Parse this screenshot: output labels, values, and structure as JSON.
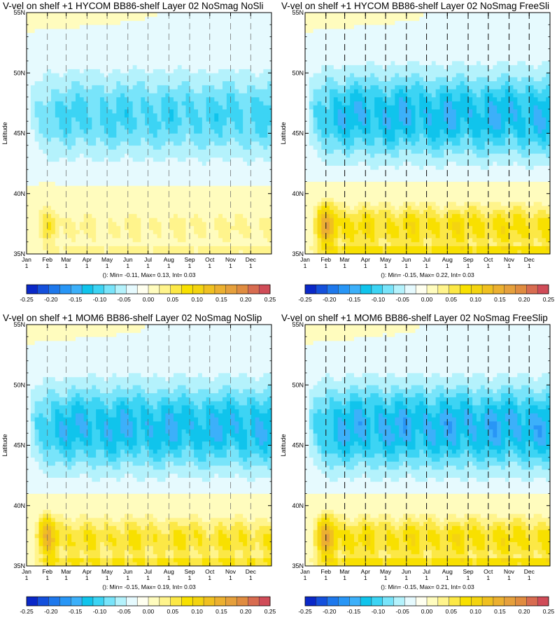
{
  "colors": [
    "#0a28c8",
    "#1450dc",
    "#1e78ec",
    "#2896f6",
    "#3cb0fa",
    "#10c4ec",
    "#3cd4f4",
    "#78e4fa",
    "#b4f2fc",
    "#e6fafe",
    "#fffff0",
    "#fffcbe",
    "#fff48c",
    "#fce846",
    "#f8e000",
    "#f4d410",
    "#f0c020",
    "#ecb030",
    "#e6a03c",
    "#e08c40",
    "#d86c50",
    "#d04c58"
  ],
  "colorbar_ticks": [
    "-0.25",
    "-0.20",
    "-0.15",
    "-0.10",
    "-0.05",
    "0.00",
    "0.05",
    "0.10",
    "0.15",
    "0.20",
    "0.25"
  ],
  "chart_data": [
    {
      "type": "heatmap",
      "title": "V-vel on shelf +1 HYCOM BB86-shelf Layer 02 NoSmag NoSli",
      "ylabel": "Latitude",
      "y_ticks": [
        "35N",
        "40N",
        "45N",
        "50N",
        "55N"
      ],
      "x_ticks": [
        {
          "m": "Jan",
          "d": "1"
        },
        {
          "m": "Feb",
          "d": "1"
        },
        {
          "m": "Mar",
          "d": "1"
        },
        {
          "m": "Apr",
          "d": "1"
        },
        {
          "m": "May",
          "d": "1"
        },
        {
          "m": "Jun",
          "d": "1"
        },
        {
          "m": "Jul",
          "d": "1"
        },
        {
          "m": "Aug",
          "d": "1"
        },
        {
          "m": "Sep",
          "d": "1"
        },
        {
          "m": "Oct",
          "d": "1"
        },
        {
          "m": "Nov",
          "d": "1"
        },
        {
          "m": "Dec",
          "d": "1"
        }
      ],
      "xlim_days": [
        0,
        365
      ],
      "ylim": [
        35,
        55
      ],
      "dashed_months": [
        1,
        2,
        3,
        4,
        5,
        6,
        7,
        8,
        9,
        10,
        11
      ],
      "dash_style": "light",
      "stats": "(): Min= -0.11, Max= 0.13, Int= 0.03",
      "min": -0.11,
      "max": 0.13,
      "interval": 0.03,
      "south_max": 0.1,
      "north_min": -0.09
    },
    {
      "type": "heatmap",
      "title": "V-vel on shelf +1 HYCOM BB86-shelf Layer 02 NoSmag FreeSli",
      "ylabel": "Latitude",
      "y_ticks": [
        "35N",
        "40N",
        "45N",
        "50N",
        "55N"
      ],
      "x_ticks": [
        {
          "m": "Jan",
          "d": "1"
        },
        {
          "m": "Feb",
          "d": "1"
        },
        {
          "m": "Mar",
          "d": "1"
        },
        {
          "m": "Apr",
          "d": "1"
        },
        {
          "m": "May",
          "d": "1"
        },
        {
          "m": "Jun",
          "d": "1"
        },
        {
          "m": "Jul",
          "d": "1"
        },
        {
          "m": "Aug",
          "d": "1"
        },
        {
          "m": "Sep",
          "d": "1"
        },
        {
          "m": "Oct",
          "d": "1"
        },
        {
          "m": "Nov",
          "d": "1"
        },
        {
          "m": "Dec",
          "d": "1"
        }
      ],
      "xlim_days": [
        0,
        365
      ],
      "ylim": [
        35,
        55
      ],
      "dashed_months": [
        1,
        2,
        3,
        4,
        5,
        6,
        7,
        8,
        9,
        10,
        11
      ],
      "dash_style": "dark",
      "stats": "(): Min= -0.15, Max= 0.22, Int= 0.03",
      "min": -0.15,
      "max": 0.22,
      "interval": 0.03,
      "south_max": 0.2,
      "north_min": -0.13
    },
    {
      "type": "heatmap",
      "title": "V-vel on shelf +1 MOM6 BB86-shelf Layer 02 NoSmag NoSlip",
      "ylabel": "Latitude",
      "y_ticks": [
        "35N",
        "40N",
        "45N",
        "50N",
        "55N"
      ],
      "x_ticks": [
        {
          "m": "Jan",
          "d": "1"
        },
        {
          "m": "Feb",
          "d": "1"
        },
        {
          "m": "Mar",
          "d": "1"
        },
        {
          "m": "Apr",
          "d": "1"
        },
        {
          "m": "May",
          "d": "1"
        },
        {
          "m": "Jun",
          "d": "1"
        },
        {
          "m": "Jul",
          "d": "1"
        },
        {
          "m": "Aug",
          "d": "1"
        },
        {
          "m": "Sep",
          "d": "1"
        },
        {
          "m": "Oct",
          "d": "1"
        },
        {
          "m": "Nov",
          "d": "1"
        },
        {
          "m": "Dec",
          "d": "1"
        }
      ],
      "xlim_days": [
        0,
        365
      ],
      "ylim": [
        35,
        55
      ],
      "dashed_months": [
        1,
        2,
        3,
        4,
        5,
        6,
        7,
        8,
        9,
        10,
        11
      ],
      "dash_style": "light",
      "stats": "(): Min= -0.15, Max= 0.19, Int= 0.03",
      "min": -0.15,
      "max": 0.19,
      "interval": 0.03,
      "south_max": 0.18,
      "north_min": -0.13
    },
    {
      "type": "heatmap",
      "title": "V-vel on shelf +1 MOM6 BB86-shelf Layer 02 NoSmag FreeSlip",
      "ylabel": "Latitude",
      "y_ticks": [
        "35N",
        "40N",
        "45N",
        "50N",
        "55N"
      ],
      "x_ticks": [
        {
          "m": "Jan",
          "d": "1"
        },
        {
          "m": "Feb",
          "d": "1"
        },
        {
          "m": "Mar",
          "d": "1"
        },
        {
          "m": "Apr",
          "d": "1"
        },
        {
          "m": "May",
          "d": "1"
        },
        {
          "m": "Jun",
          "d": "1"
        },
        {
          "m": "Jul",
          "d": "1"
        },
        {
          "m": "Aug",
          "d": "1"
        },
        {
          "m": "Sep",
          "d": "1"
        },
        {
          "m": "Oct",
          "d": "1"
        },
        {
          "m": "Nov",
          "d": "1"
        },
        {
          "m": "Dec",
          "d": "1"
        }
      ],
      "xlim_days": [
        0,
        365
      ],
      "ylim": [
        35,
        55
      ],
      "dashed_months": [
        1,
        2,
        3,
        4,
        5,
        6,
        7,
        8,
        9,
        10,
        11
      ],
      "dash_style": "dark",
      "stats": "(): Min= -0.15, Max= 0.21, Int= 0.03",
      "min": -0.15,
      "max": 0.21,
      "interval": 0.03,
      "south_max": 0.2,
      "north_min": -0.14
    }
  ]
}
